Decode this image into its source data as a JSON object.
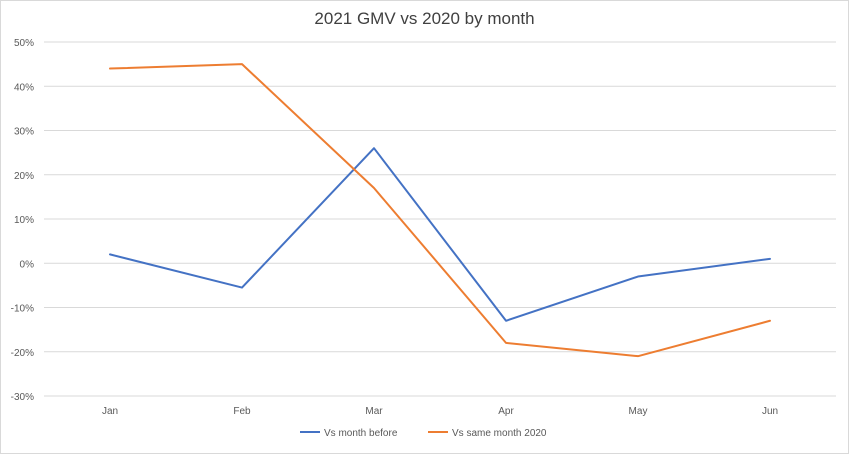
{
  "chart_data": {
    "type": "line",
    "title": "2021 GMV vs 2020 by month",
    "xlabel": "",
    "ylabel": "",
    "categories": [
      "Jan",
      "Feb",
      "Mar",
      "Apr",
      "May",
      "Jun"
    ],
    "ylim": [
      -30,
      50
    ],
    "y_ticks": [
      50,
      40,
      30,
      20,
      10,
      0,
      -10,
      -20,
      -30
    ],
    "y_tick_labels": [
      "50%",
      "40%",
      "30%",
      "20%",
      "10%",
      "0%",
      "-10%",
      "-20%",
      "-30%"
    ],
    "grid": true,
    "legend": "bottom",
    "series": [
      {
        "name": "Vs month before",
        "color": "#4472c4",
        "values": [
          2,
          -5.5,
          26,
          -13,
          -3,
          1
        ]
      },
      {
        "name": "Vs same month 2020",
        "color": "#ed7d31",
        "values": [
          44,
          45,
          17,
          -18,
          -21,
          -13
        ]
      }
    ]
  }
}
